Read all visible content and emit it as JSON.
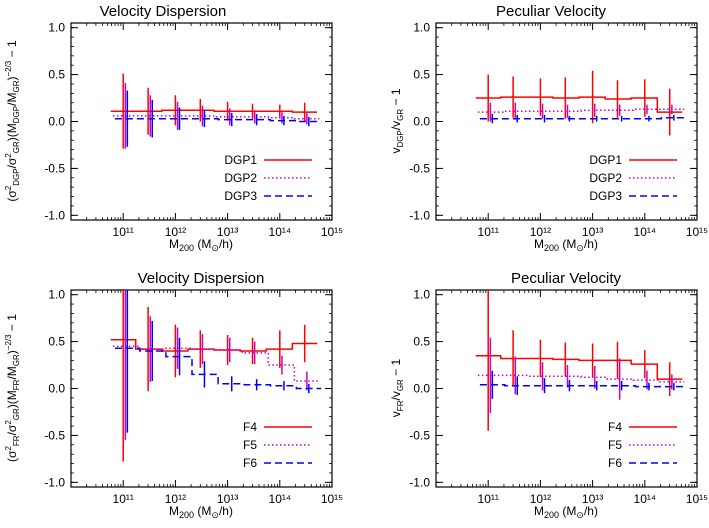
{
  "chart_data": [
    {
      "type": "line",
      "title": "Velocity Dispersion",
      "xlabel": "M200 (M⊙/h)",
      "ylabel": "(σ²DGP/σ²GR)(MDGP/MGR)^-2/3 − 1",
      "x_scale": "log",
      "xlim": [
        10000000000.0,
        1000000000000000.0
      ],
      "ylim": [
        -1.05,
        1.05
      ],
      "x_ticks": [
        "10¹¹",
        "10¹²",
        "10¹³",
        "10¹⁴",
        "10¹⁵"
      ],
      "y_ticks": [
        "-1.0",
        "-0.5",
        "0.0",
        "0.5",
        "1.0"
      ],
      "legend": "bottom-right",
      "series": [
        {
          "name": "DGP1",
          "color": "#ff0000",
          "style": "solid",
          "x": [
            100000000000.0,
            300000000000.0,
            1000000000000.0,
            3000000000000.0,
            10000000000000.0,
            30000000000000.0,
            100000000000000.0,
            300000000000000.0
          ],
          "y": [
            0.11,
            0.11,
            0.12,
            0.12,
            0.11,
            0.11,
            0.11,
            0.1
          ],
          "yerr": [
            0.4,
            0.25,
            0.16,
            0.12,
            0.1,
            0.08,
            0.07,
            0.1
          ]
        },
        {
          "name": "DGP2",
          "color": "#cc00cc",
          "style": "dotted",
          "x": [
            110000000000.0,
            330000000000.0,
            1100000000000.0,
            3300000000000.0,
            11000000000000.0,
            33000000000000.0,
            110000000000000.0,
            330000000000000.0
          ],
          "y": [
            0.06,
            0.06,
            0.06,
            0.06,
            0.05,
            0.05,
            0.04,
            0.03
          ],
          "yerr": [
            0.35,
            0.22,
            0.15,
            0.11,
            0.09,
            0.07,
            0.06,
            0.06
          ]
        },
        {
          "name": "DGP3",
          "color": "#0000ff",
          "style": "dashed",
          "x": [
            120000000000.0,
            360000000000.0,
            1200000000000.0,
            3600000000000.0,
            12000000000000.0,
            36000000000000.0,
            120000000000000.0,
            360000000000000.0
          ],
          "y": [
            0.03,
            0.03,
            0.03,
            0.03,
            0.02,
            0.02,
            0.01,
            0.0
          ],
          "yerr": [
            0.3,
            0.2,
            0.12,
            0.09,
            0.07,
            0.06,
            0.05,
            0.05
          ]
        }
      ]
    },
    {
      "type": "line",
      "title": "Peculiar Velocity",
      "xlabel": "M200 (M⊙/h)",
      "ylabel": "vDGP/vGR − 1",
      "x_scale": "log",
      "xlim": [
        10000000000.0,
        1000000000000000.0
      ],
      "ylim": [
        -1.05,
        1.05
      ],
      "x_ticks": [
        "10¹¹",
        "10¹²",
        "10¹³",
        "10¹⁴",
        "10¹⁵"
      ],
      "y_ticks": [
        "-1.0",
        "-0.5",
        "0.0",
        "0.5",
        "1.0"
      ],
      "legend": "bottom-right",
      "series": [
        {
          "name": "DGP1",
          "color": "#ff0000",
          "style": "solid",
          "x": [
            100000000000.0,
            300000000000.0,
            1000000000000.0,
            3000000000000.0,
            10000000000000.0,
            30000000000000.0,
            100000000000000.0,
            300000000000000.0
          ],
          "y": [
            0.25,
            0.26,
            0.26,
            0.25,
            0.26,
            0.24,
            0.25,
            0.1
          ],
          "yerr": [
            0.25,
            0.22,
            0.2,
            0.22,
            0.28,
            0.2,
            0.2,
            0.25
          ]
        },
        {
          "name": "DGP2",
          "color": "#cc00cc",
          "style": "dotted",
          "x": [
            110000000000.0,
            330000000000.0,
            1100000000000.0,
            3300000000000.0,
            11000000000000.0,
            33000000000000.0,
            110000000000000.0,
            330000000000000.0
          ],
          "y": [
            0.1,
            0.11,
            0.11,
            0.11,
            0.12,
            0.12,
            0.13,
            0.13
          ],
          "yerr": [
            0.1,
            0.09,
            0.08,
            0.07,
            0.07,
            0.06,
            0.05,
            0.05
          ]
        },
        {
          "name": "DGP3",
          "color": "#0000ff",
          "style": "dashed",
          "x": [
            120000000000.0,
            360000000000.0,
            1200000000000.0,
            3600000000000.0,
            12000000000000.0,
            36000000000000.0,
            120000000000000.0,
            360000000000000.0
          ],
          "y": [
            0.03,
            0.03,
            0.03,
            0.03,
            0.03,
            0.03,
            0.03,
            0.04
          ],
          "yerr": [
            0.05,
            0.04,
            0.04,
            0.03,
            0.03,
            0.03,
            0.03,
            0.03
          ]
        }
      ]
    },
    {
      "type": "line",
      "title": "Velocity Dispersion",
      "xlabel": "M200 (M⊙/h)",
      "ylabel": "(σ²FR/σ²GR)(MFR/MGR)^-2/3 − 1",
      "x_scale": "log",
      "xlim": [
        10000000000.0,
        1000000000000000.0
      ],
      "ylim": [
        -1.05,
        1.05
      ],
      "x_ticks": [
        "10¹¹",
        "10¹²",
        "10¹³",
        "10¹⁴",
        "10¹⁵"
      ],
      "y_ticks": [
        "-1.0",
        "-0.5",
        "0.0",
        "0.5",
        "1.0"
      ],
      "legend": "bottom-right",
      "series": [
        {
          "name": "F4",
          "color": "#ff0000",
          "style": "solid",
          "x": [
            100000000000.0,
            300000000000.0,
            1000000000000.0,
            3000000000000.0,
            10000000000000.0,
            30000000000000.0,
            100000000000000.0,
            300000000000000.0
          ],
          "y": [
            0.52,
            0.42,
            0.4,
            0.42,
            0.41,
            0.4,
            0.42,
            0.48
          ],
          "yerr": [
            1.3,
            0.45,
            0.28,
            0.2,
            0.16,
            0.14,
            0.2,
            0.2
          ]
        },
        {
          "name": "F5",
          "color": "#cc00cc",
          "style": "dotted",
          "x": [
            110000000000.0,
            330000000000.0,
            1100000000000.0,
            3300000000000.0,
            11000000000000.0,
            33000000000000.0,
            110000000000000.0,
            330000000000000.0
          ],
          "y": [
            0.45,
            0.42,
            0.43,
            0.42,
            0.41,
            0.38,
            0.25,
            0.08
          ],
          "yerr": [
            1.0,
            0.35,
            0.22,
            0.16,
            0.13,
            0.12,
            0.1,
            0.1
          ]
        },
        {
          "name": "F6",
          "color": "#0000ff",
          "style": "dashed",
          "x": [
            120000000000.0,
            360000000000.0,
            1200000000000.0,
            3600000000000.0,
            12000000000000.0,
            36000000000000.0,
            120000000000000.0,
            360000000000000.0
          ],
          "y": [
            0.43,
            0.4,
            0.34,
            0.15,
            0.05,
            0.04,
            0.03,
            0.0
          ],
          "yerr": [
            0.9,
            0.32,
            0.2,
            0.14,
            0.08,
            0.06,
            0.05,
            0.05
          ]
        }
      ]
    },
    {
      "type": "line",
      "title": "Peculiar Velocity",
      "xlabel": "M200 (M⊙/h)",
      "ylabel": "vFR/vGR − 1",
      "x_scale": "log",
      "xlim": [
        10000000000.0,
        1000000000000000.0
      ],
      "ylim": [
        -1.05,
        1.05
      ],
      "x_ticks": [
        "10¹¹",
        "10¹²",
        "10¹³",
        "10¹⁴",
        "10¹⁵"
      ],
      "y_ticks": [
        "-1.0",
        "-0.5",
        "0.0",
        "0.5",
        "1.0"
      ],
      "legend": "bottom-right",
      "series": [
        {
          "name": "F4",
          "color": "#ff0000",
          "style": "solid",
          "x": [
            100000000000.0,
            300000000000.0,
            1000000000000.0,
            3000000000000.0,
            10000000000000.0,
            30000000000000.0,
            100000000000000.0,
            300000000000000.0
          ],
          "y": [
            0.35,
            0.32,
            0.32,
            0.31,
            0.3,
            0.3,
            0.26,
            0.1
          ],
          "yerr": [
            0.8,
            0.3,
            0.2,
            0.18,
            0.18,
            0.2,
            0.15,
            0.18
          ]
        },
        {
          "name": "F5",
          "color": "#cc00cc",
          "style": "dotted",
          "x": [
            110000000000.0,
            330000000000.0,
            1100000000000.0,
            3300000000000.0,
            11000000000000.0,
            33000000000000.0,
            110000000000000.0,
            330000000000000.0
          ],
          "y": [
            0.14,
            0.14,
            0.13,
            0.13,
            0.12,
            0.1,
            0.09,
            0.07
          ],
          "yerr": [
            0.4,
            0.2,
            0.15,
            0.12,
            0.12,
            0.22,
            0.1,
            0.08
          ]
        },
        {
          "name": "F6",
          "color": "#0000ff",
          "style": "dashed",
          "x": [
            120000000000.0,
            360000000000.0,
            1200000000000.0,
            3600000000000.0,
            12000000000000.0,
            36000000000000.0,
            120000000000000.0,
            360000000000000.0
          ],
          "y": [
            0.04,
            0.03,
            0.03,
            0.03,
            0.03,
            0.03,
            0.02,
            0.02
          ],
          "yerr": [
            0.15,
            0.1,
            0.08,
            0.06,
            0.05,
            0.05,
            0.04,
            0.04
          ]
        }
      ]
    }
  ]
}
